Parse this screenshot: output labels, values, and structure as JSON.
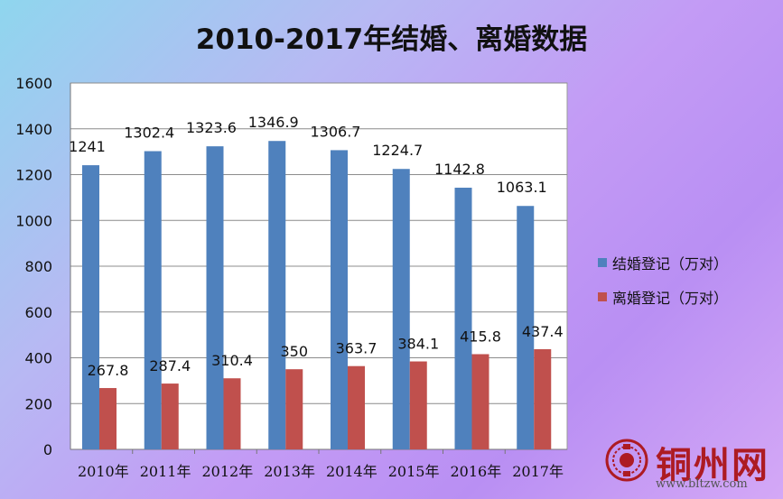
{
  "colors": {
    "married": "#4f81bd",
    "divorced": "#c0504d",
    "watermark": "#ad1b23"
  },
  "chart_data": {
    "type": "bar",
    "title": "2010-2017年结婚、离婚数据",
    "categories": [
      "2010年",
      "2011年",
      "2012年",
      "2013年",
      "2014年",
      "2015年",
      "2016年",
      "2017年"
    ],
    "series": [
      {
        "name": "结婚登记（万对）",
        "values": [
          1241,
          1302.4,
          1323.6,
          1346.9,
          1306.7,
          1224.7,
          1142.8,
          1063.1
        ],
        "labels": [
          "1241",
          "1302.4",
          "1323.6",
          "1346.9",
          "1306.7",
          "1224.7",
          "1142.8",
          "1063.1"
        ]
      },
      {
        "name": "离婚登记（万对）",
        "values": [
          267.8,
          287.4,
          310.4,
          350,
          363.7,
          384.1,
          415.8,
          437.4
        ],
        "labels": [
          "267.8",
          "287.4",
          "310.4",
          "350",
          "363.7",
          "384.1",
          "415.8",
          "437.4"
        ]
      }
    ],
    "yticks": [
      "0",
      "200",
      "400",
      "600",
      "800",
      "1000",
      "1200",
      "1400",
      "1600"
    ],
    "ylim": [
      0,
      1600
    ],
    "grid": true,
    "legend_position": "right"
  },
  "watermark": {
    "name": "铜州网",
    "url": "www.bltzw.com"
  }
}
